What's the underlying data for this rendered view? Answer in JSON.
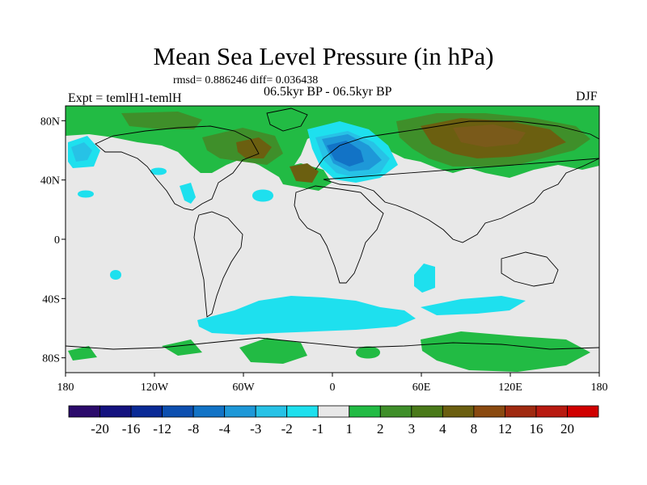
{
  "header": {
    "title": "Mean Sea Level Pressure (in hPa)",
    "stats": "rmsd= 0.886246 diff= 0.036438",
    "experiment": "Expt = temlH1-temlH",
    "period": "06.5kyr BP - 06.5kyr BP",
    "season": "DJF"
  },
  "axes": {
    "lat_labels": [
      "80N",
      "40N",
      "0",
      "40S",
      "80S"
    ],
    "lon_labels": [
      "180",
      "120W",
      "60W",
      "0",
      "60E",
      "120E",
      "180"
    ]
  },
  "colorbar": {
    "labels": [
      "-20",
      "-16",
      "-12",
      "-8",
      "-4",
      "-3",
      "-2",
      "-1",
      "1",
      "2",
      "3",
      "4",
      "8",
      "12",
      "16",
      "20"
    ],
    "colors": [
      "#2b0a6b",
      "#14127f",
      "#0a2a96",
      "#0d4fb0",
      "#1273c6",
      "#1e98d8",
      "#27c2e6",
      "#1ee0ee",
      "#e8e8e8",
      "#22bb44",
      "#3f8f2a",
      "#4a7a1a",
      "#6b5f10",
      "#8a4a10",
      "#a02a10",
      "#b81a10",
      "#d00000"
    ],
    "zero_band_color": "#e8e8e8"
  },
  "fill_colors": {
    "ocean_background": "#e8e8e8",
    "green_2": "#22bb44",
    "green_3": "#3f8f2a",
    "olive_4": "#6b5f10",
    "brown_8": "#7a5a1a",
    "cyan_neg1": "#1ee0ee",
    "lightblue_neg2": "#27c2e6",
    "blue_neg3": "#1e98d8",
    "blue_neg4": "#1273c6"
  }
}
